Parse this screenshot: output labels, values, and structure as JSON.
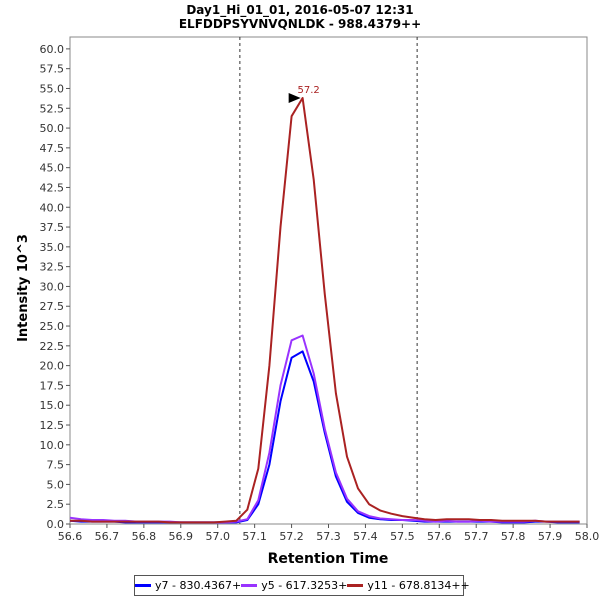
{
  "chart_data": {
    "type": "line",
    "title": "Day1_Hi_01_01, 2016-05-07 12:31",
    "subtitle": "ELFDDPSYVNVQNLDK - 988.4379++",
    "xlabel": "Retention Time",
    "ylabel": "Intensity 10^3",
    "xlim": [
      56.6,
      58.0
    ],
    "ylim": [
      0,
      61.5
    ],
    "x_ticks": [
      "56.6",
      "56.7",
      "56.8",
      "56.9",
      "57.0",
      "57.1",
      "57.2",
      "57.3",
      "57.4",
      "57.5",
      "57.6",
      "57.7",
      "57.8",
      "57.9",
      "58.0"
    ],
    "y_ticks": [
      "0.0",
      "2.5",
      "5.0",
      "7.5",
      "10.0",
      "12.5",
      "15.0",
      "17.5",
      "20.0",
      "22.5",
      "25.0",
      "27.5",
      "30.0",
      "32.5",
      "35.0",
      "37.5",
      "40.0",
      "42.5",
      "45.0",
      "47.5",
      "50.0",
      "52.5",
      "55.0",
      "57.5",
      "60.0"
    ],
    "grid": false,
    "legend_position": "bottom",
    "integration_boundaries": [
      57.06,
      57.54
    ],
    "peak_annotation": {
      "label": "57.2",
      "x": 57.23,
      "y": 53.8
    },
    "x": [
      56.6,
      56.63,
      56.66,
      56.69,
      56.72,
      56.75,
      56.78,
      56.81,
      56.84,
      56.87,
      56.9,
      56.93,
      56.96,
      56.99,
      57.02,
      57.05,
      57.08,
      57.11,
      57.14,
      57.17,
      57.2,
      57.23,
      57.26,
      57.29,
      57.32,
      57.35,
      57.38,
      57.41,
      57.44,
      57.47,
      57.5,
      57.53,
      57.56,
      57.59,
      57.62,
      57.65,
      57.68,
      57.71,
      57.74,
      57.77,
      57.8,
      57.83,
      57.86,
      57.89,
      57.92,
      57.95,
      57.98
    ],
    "series": [
      {
        "name": "y7 - 830.4367+",
        "color": "#0000ff",
        "values": [
          0.4,
          0.3,
          0.3,
          0.3,
          0.3,
          0.2,
          0.2,
          0.2,
          0.2,
          0.2,
          0.2,
          0.2,
          0.2,
          0.2,
          0.2,
          0.2,
          0.5,
          2.5,
          7.5,
          15.5,
          21.0,
          21.8,
          18.0,
          11.5,
          6.0,
          2.8,
          1.4,
          0.8,
          0.6,
          0.5,
          0.5,
          0.4,
          0.3,
          0.3,
          0.3,
          0.3,
          0.3,
          0.3,
          0.3,
          0.2,
          0.2,
          0.2,
          0.3,
          0.3,
          0.2,
          0.2,
          0.2
        ]
      },
      {
        "name": "y5 - 617.3253+",
        "color": "#9933ff",
        "values": [
          0.8,
          0.6,
          0.5,
          0.5,
          0.4,
          0.4,
          0.3,
          0.3,
          0.3,
          0.3,
          0.2,
          0.2,
          0.2,
          0.2,
          0.2,
          0.3,
          0.6,
          3.0,
          9.0,
          17.5,
          23.2,
          23.8,
          19.0,
          12.0,
          6.5,
          3.2,
          1.6,
          1.0,
          0.7,
          0.6,
          0.5,
          0.5,
          0.4,
          0.3,
          0.4,
          0.3,
          0.3,
          0.4,
          0.3,
          0.3,
          0.3,
          0.3,
          0.4,
          0.3,
          0.3,
          0.3,
          0.3
        ]
      },
      {
        "name": "y11 - 678.8134++",
        "color": "#aa2222",
        "values": [
          0.4,
          0.4,
          0.3,
          0.3,
          0.3,
          0.3,
          0.3,
          0.3,
          0.3,
          0.2,
          0.2,
          0.2,
          0.2,
          0.2,
          0.3,
          0.4,
          1.8,
          7.0,
          20.0,
          37.5,
          51.5,
          53.8,
          43.5,
          29.0,
          16.5,
          8.5,
          4.5,
          2.5,
          1.7,
          1.3,
          1.0,
          0.8,
          0.6,
          0.5,
          0.6,
          0.6,
          0.6,
          0.5,
          0.5,
          0.4,
          0.4,
          0.4,
          0.4,
          0.3,
          0.3,
          0.3,
          0.3
        ]
      }
    ]
  }
}
